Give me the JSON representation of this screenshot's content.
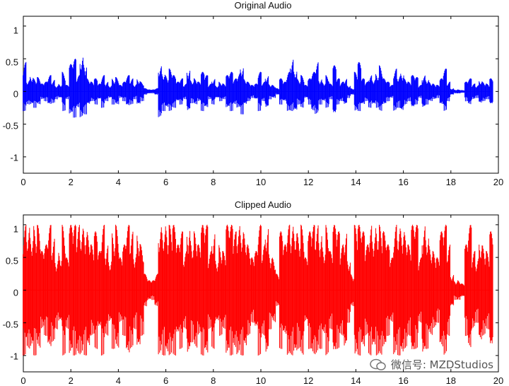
{
  "chart_data": [
    {
      "type": "line",
      "title": "Original Audio",
      "xlabel": "",
      "ylabel": "",
      "xlim": [
        0,
        20
      ],
      "ylim": [
        -1.25,
        1.15
      ],
      "xticks": [
        0,
        2,
        4,
        6,
        8,
        10,
        12,
        14,
        16,
        18,
        20
      ],
      "yticks": [
        -1,
        -0.5,
        0,
        0.5,
        1
      ],
      "grid": false,
      "color": "#0000ff",
      "series": [
        {
          "x": [
            0.05,
            0.2,
            0.35,
            0.5,
            0.65,
            0.8,
            0.95,
            1.1,
            1.25,
            1.4,
            1.55,
            1.7,
            1.85,
            2.0,
            2.15,
            2.3,
            2.45,
            2.6,
            2.75,
            2.9,
            3.05,
            3.2,
            3.35,
            3.5,
            3.65,
            3.8,
            3.95,
            4.1,
            4.25,
            4.4,
            4.55,
            4.7,
            4.85,
            5.0,
            5.15,
            5.3,
            5.45,
            5.6,
            5.75,
            5.9,
            6.05,
            6.2,
            6.35,
            6.5,
            6.65,
            6.8,
            6.95,
            7.1,
            7.25,
            7.4,
            7.55,
            7.7,
            7.85,
            8.0,
            8.15,
            8.3,
            8.45,
            8.6,
            8.75,
            8.9,
            9.05,
            9.2,
            9.35,
            9.5,
            9.65,
            9.8,
            9.95,
            10.1,
            10.25,
            10.4,
            10.55,
            10.7,
            10.85,
            11.0,
            11.15,
            11.3,
            11.45,
            11.6,
            11.75,
            11.9,
            12.05,
            12.2,
            12.35,
            12.5,
            12.65,
            12.8,
            12.95,
            13.1,
            13.25,
            13.4,
            13.55,
            13.7,
            13.85,
            14.0,
            14.15,
            14.3,
            14.45,
            14.6,
            14.75,
            14.9,
            15.05,
            15.2,
            15.35,
            15.5,
            15.65,
            15.8,
            15.95,
            16.1,
            16.25,
            16.4,
            16.55,
            16.7,
            16.85,
            17.0,
            17.15,
            17.3,
            17.45,
            17.6,
            17.75,
            17.9,
            18.05,
            18.2,
            18.35,
            18.5,
            18.65,
            18.8,
            18.95,
            19.1,
            19.25,
            19.4,
            19.55,
            19.7
          ],
          "y_max": [
            0.45,
            0.18,
            0.25,
            0.2,
            0.22,
            0.12,
            0.15,
            0.25,
            0.18,
            0.1,
            0.12,
            0.3,
            0.1,
            0.42,
            0.5,
            0.25,
            0.55,
            0.45,
            0.2,
            0.15,
            0.2,
            0.12,
            0.25,
            0.15,
            0.1,
            0.2,
            0.22,
            0.1,
            0.15,
            0.25,
            0.2,
            0.12,
            0.2,
            0.15,
            0.05,
            0.03,
            0.03,
            0.05,
            0.4,
            0.3,
            0.25,
            0.35,
            0.25,
            0.15,
            0.2,
            0.12,
            0.35,
            0.18,
            0.2,
            0.15,
            0.3,
            0.25,
            0.12,
            0.2,
            0.1,
            0.15,
            0.12,
            0.25,
            0.3,
            0.2,
            0.28,
            0.4,
            0.2,
            0.15,
            0.1,
            0.12,
            0.3,
            0.15,
            0.25,
            0.12,
            0.1,
            0.05,
            0.2,
            0.15,
            0.3,
            0.5,
            0.35,
            0.2,
            0.25,
            0.1,
            0.2,
            0.3,
            0.45,
            0.2,
            0.15,
            0.25,
            0.12,
            0.4,
            0.2,
            0.15,
            0.2,
            0.1,
            0.05,
            0.3,
            0.45,
            0.2,
            0.15,
            0.25,
            0.2,
            0.28,
            0.4,
            0.2,
            0.15,
            0.1,
            0.35,
            0.25,
            0.3,
            0.2,
            0.15,
            0.25,
            0.22,
            0.1,
            0.25,
            0.2,
            0.15,
            0.12,
            0.1,
            0.2,
            0.35,
            0.15,
            0.05,
            0.03,
            0.03,
            0.02,
            0.15,
            0.2,
            0.12,
            0.1,
            0.18,
            0.15,
            0.12,
            0.2
          ],
          "y_min": [
            -0.3,
            -0.2,
            -0.2,
            -0.25,
            -0.2,
            -0.12,
            -0.15,
            -0.2,
            -0.18,
            -0.12,
            -0.1,
            -0.3,
            -0.12,
            -0.35,
            -0.4,
            -0.25,
            -0.4,
            -0.35,
            -0.2,
            -0.15,
            -0.2,
            -0.12,
            -0.25,
            -0.15,
            -0.1,
            -0.2,
            -0.2,
            -0.1,
            -0.15,
            -0.22,
            -0.2,
            -0.12,
            -0.2,
            -0.15,
            -0.05,
            -0.03,
            -0.03,
            -0.05,
            -0.4,
            -0.3,
            -0.25,
            -0.3,
            -0.25,
            -0.15,
            -0.2,
            -0.12,
            -0.3,
            -0.18,
            -0.2,
            -0.15,
            -0.3,
            -0.25,
            -0.12,
            -0.2,
            -0.1,
            -0.15,
            -0.12,
            -0.25,
            -0.3,
            -0.2,
            -0.25,
            -0.35,
            -0.2,
            -0.15,
            -0.1,
            -0.12,
            -0.3,
            -0.15,
            -0.25,
            -0.12,
            -0.1,
            -0.05,
            -0.2,
            -0.15,
            -0.3,
            -0.3,
            -0.3,
            -0.2,
            -0.25,
            -0.1,
            -0.2,
            -0.3,
            -0.35,
            -0.2,
            -0.15,
            -0.25,
            -0.12,
            -0.35,
            -0.2,
            -0.15,
            -0.2,
            -0.1,
            -0.05,
            -0.3,
            -0.3,
            -0.2,
            -0.15,
            -0.25,
            -0.2,
            -0.25,
            -0.3,
            -0.2,
            -0.15,
            -0.1,
            -0.3,
            -0.25,
            -0.3,
            -0.2,
            -0.15,
            -0.25,
            -0.2,
            -0.1,
            -0.25,
            -0.2,
            -0.15,
            -0.12,
            -0.1,
            -0.2,
            -0.3,
            -0.15,
            -0.05,
            -0.03,
            -0.03,
            -0.02,
            -0.15,
            -0.2,
            -0.12,
            -0.1,
            -0.18,
            -0.15,
            -0.12,
            -0.2
          ]
        }
      ]
    },
    {
      "type": "line",
      "title": "Clipped Audio",
      "xlabel": "",
      "ylabel": "",
      "xlim": [
        0,
        20
      ],
      "ylim": [
        -1.25,
        1.15
      ],
      "xticks": [
        0,
        2,
        4,
        6,
        8,
        10,
        12,
        14,
        16,
        18,
        20
      ],
      "yticks": [
        -1,
        -0.5,
        0,
        0.5,
        1
      ],
      "grid": false,
      "color": "#ff0000",
      "series": [
        {
          "x": [
            0.05,
            0.2,
            0.35,
            0.5,
            0.65,
            0.8,
            0.95,
            1.1,
            1.25,
            1.4,
            1.55,
            1.7,
            1.85,
            2.0,
            2.15,
            2.3,
            2.45,
            2.6,
            2.75,
            2.9,
            3.05,
            3.2,
            3.35,
            3.5,
            3.65,
            3.8,
            3.95,
            4.1,
            4.25,
            4.4,
            4.55,
            4.7,
            4.85,
            5.0,
            5.15,
            5.3,
            5.45,
            5.6,
            5.75,
            5.9,
            6.05,
            6.2,
            6.35,
            6.5,
            6.65,
            6.8,
            6.95,
            7.1,
            7.25,
            7.4,
            7.55,
            7.7,
            7.85,
            8.0,
            8.15,
            8.3,
            8.45,
            8.6,
            8.75,
            8.9,
            9.05,
            9.2,
            9.35,
            9.5,
            9.65,
            9.8,
            9.95,
            10.1,
            10.25,
            10.4,
            10.55,
            10.7,
            10.85,
            11.0,
            11.15,
            11.3,
            11.45,
            11.6,
            11.75,
            11.9,
            12.05,
            12.2,
            12.35,
            12.5,
            12.65,
            12.8,
            12.95,
            13.1,
            13.25,
            13.4,
            13.55,
            13.7,
            13.85,
            14.0,
            14.15,
            14.3,
            14.45,
            14.6,
            14.75,
            14.9,
            15.05,
            15.2,
            15.35,
            15.5,
            15.65,
            15.8,
            15.95,
            16.1,
            16.25,
            16.4,
            16.55,
            16.7,
            16.85,
            17.0,
            17.15,
            17.3,
            17.45,
            17.6,
            17.75,
            17.9,
            18.05,
            18.2,
            18.35,
            18.5,
            18.65,
            18.8,
            18.95,
            19.1,
            19.25,
            19.4,
            19.55,
            19.7
          ],
          "y_max": [
            1,
            1,
            0.9,
            1,
            1,
            0.6,
            0.7,
            1,
            0.8,
            0.5,
            0.6,
            1,
            0.5,
            1,
            1,
            1,
            1,
            1,
            0.9,
            0.7,
            0.9,
            0.6,
            1,
            0.7,
            0.5,
            0.9,
            1,
            0.5,
            0.7,
            1,
            0.9,
            0.6,
            0.9,
            0.7,
            0.25,
            0.15,
            0.15,
            0.25,
            1,
            1,
            1,
            1,
            1,
            0.7,
            0.9,
            0.6,
            1,
            0.8,
            0.9,
            0.7,
            1,
            1,
            0.6,
            0.9,
            0.5,
            0.7,
            0.6,
            1,
            1,
            0.9,
            1,
            1,
            0.9,
            0.7,
            0.5,
            0.6,
            1,
            0.7,
            1,
            0.6,
            0.5,
            0.25,
            0.9,
            0.7,
            1,
            1,
            1,
            0.9,
            1,
            0.5,
            0.9,
            1,
            1,
            0.9,
            0.7,
            1,
            0.6,
            1,
            0.9,
            0.7,
            0.9,
            0.5,
            0.25,
            1,
            1,
            0.9,
            0.7,
            1,
            0.9,
            1,
            1,
            0.9,
            0.7,
            0.5,
            1,
            1,
            1,
            0.9,
            0.7,
            1,
            1,
            0.5,
            1,
            0.9,
            0.7,
            0.6,
            0.5,
            0.9,
            1,
            0.7,
            0.25,
            0.15,
            0.15,
            0.1,
            0.7,
            1,
            0.6,
            0.5,
            0.8,
            0.7,
            0.6,
            0.9
          ],
          "y_min": [
            -1,
            -0.9,
            -0.9,
            -1,
            -0.9,
            -0.6,
            -0.7,
            -0.9,
            -0.8,
            -0.6,
            -0.5,
            -1,
            -0.6,
            -1,
            -1,
            -1,
            -1,
            -1,
            -0.9,
            -0.7,
            -0.9,
            -0.6,
            -1,
            -0.7,
            -0.5,
            -0.9,
            -0.9,
            -0.5,
            -0.7,
            -1,
            -0.9,
            -0.6,
            -0.9,
            -0.7,
            -0.25,
            -0.15,
            -0.15,
            -0.25,
            -1,
            -1,
            -1,
            -1,
            -1,
            -0.7,
            -0.9,
            -0.6,
            -1,
            -0.8,
            -0.9,
            -0.7,
            -1,
            -1,
            -0.6,
            -0.9,
            -0.5,
            -0.7,
            -0.6,
            -1,
            -1,
            -0.9,
            -1,
            -1,
            -0.9,
            -0.7,
            -0.5,
            -0.6,
            -1,
            -0.7,
            -1,
            -0.6,
            -0.5,
            -0.25,
            -0.9,
            -0.7,
            -1,
            -1,
            -1,
            -0.9,
            -1,
            -0.5,
            -0.9,
            -1,
            -1,
            -0.9,
            -0.7,
            -1,
            -0.6,
            -1,
            -0.9,
            -0.7,
            -0.9,
            -0.5,
            -0.25,
            -1,
            -1,
            -0.9,
            -0.7,
            -1,
            -0.9,
            -1,
            -1,
            -0.9,
            -0.7,
            -0.5,
            -1,
            -1,
            -1,
            -0.9,
            -0.7,
            -1,
            -0.9,
            -0.5,
            -1,
            -0.9,
            -0.7,
            -0.6,
            -0.5,
            -0.9,
            -1,
            -0.7,
            -0.25,
            -0.15,
            -0.15,
            -0.1,
            -0.7,
            -0.9,
            -0.6,
            -0.5,
            -0.8,
            -0.7,
            -0.6,
            -0.9
          ]
        }
      ]
    }
  ],
  "plot_labels": [
    {
      "title": "Original Audio",
      "xtick_labels": [
        "0",
        "2",
        "4",
        "6",
        "8",
        "10",
        "12",
        "14",
        "16",
        "18",
        "20"
      ],
      "ytick_labels": [
        "-1",
        "-0.5",
        "0",
        "0.5",
        "1"
      ]
    },
    {
      "title": "Clipped Audio",
      "xtick_labels": [
        "0",
        "2",
        "4",
        "6",
        "8",
        "10",
        "12",
        "14",
        "16",
        "18",
        "20"
      ],
      "ytick_labels": [
        "-1",
        "-0.5",
        "0",
        "0.5",
        "1"
      ]
    }
  ],
  "watermark": {
    "text": "微信号: MZDStudios"
  }
}
